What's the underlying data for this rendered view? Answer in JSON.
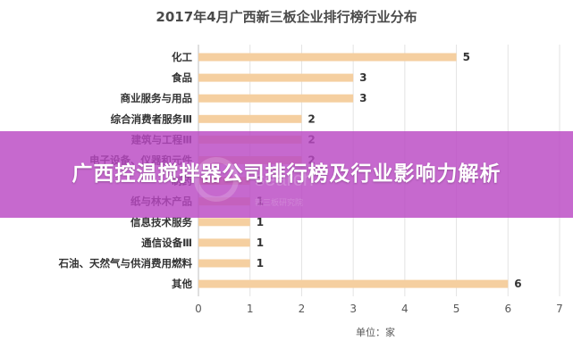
{
  "chart_data": {
    "type": "bar",
    "orientation": "horizontal",
    "title": "2017年4月广西新三板企业排行榜行业分布",
    "xlabel": "单位：家",
    "ylabel": "",
    "xlim": [
      0,
      7
    ],
    "xticks": [
      0,
      1,
      2,
      3,
      4,
      5,
      6,
      7
    ],
    "grid": true,
    "bar_color": "#f5cfa0",
    "categories": [
      "化工",
      "食品",
      "商业服务与用品",
      "综合消费者服务Ⅲ",
      "建筑与工程Ⅲ",
      "电子设备、仪器和元件",
      "制药",
      "纸与林木产品",
      "信息技术服务",
      "通信设备Ⅲ",
      "石油、天然气与供消费用燃料",
      "其他"
    ],
    "values": [
      5,
      3,
      3,
      2,
      2,
      2,
      1,
      1,
      1,
      1,
      1,
      6
    ]
  },
  "overlay": {
    "title": "广西控温搅拌器公司排行榜及行业影响力解析",
    "color": "#b948c3"
  },
  "watermark": {
    "brand": "search",
    "sub": "新三板研究院"
  }
}
